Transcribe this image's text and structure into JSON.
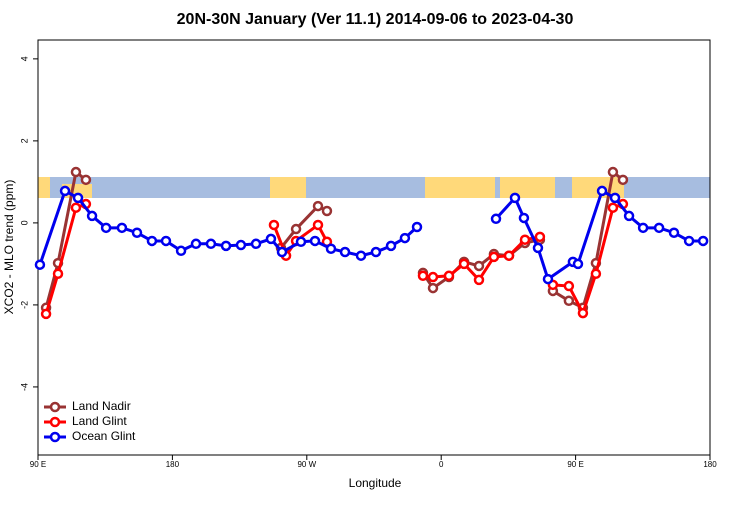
{
  "chart_data": {
    "type": "line",
    "title": "20N-30N January (Ver 11.1)   2014-09-06 to 2023-04-30",
    "xlabel": "Longitude",
    "ylabel": "XCO2 - MLO trend (ppm)",
    "xlim": [
      90,
      540
    ],
    "xticks": [
      {
        "value": 90,
        "label": "90 E"
      },
      {
        "value": 180,
        "label": "180"
      },
      {
        "value": 270,
        "label": "90 W"
      },
      {
        "value": 360,
        "label": "0"
      },
      {
        "value": 450,
        "label": "90 E"
      },
      {
        "value": 540,
        "label": "180"
      }
    ],
    "ylim": [
      -5.66,
      4.46
    ],
    "yticks": [
      4,
      2,
      0,
      -2,
      -4
    ],
    "legend": "bottom-left",
    "series": [
      {
        "name": "Land Nadir",
        "color": "#993333",
        "x": [
          95.4,
          103.4,
          115.4,
          122.1,
          null,
          252.7,
          262.8,
          277.5,
          283.5,
          null,
          347.8,
          354.5,
          365.2,
          375.3,
          385.3,
          395.3,
          405.4,
          416.1,
          426.1,
          null,
          434.8,
          445.5,
          454.9,
          463.6,
          475.0,
          481.7
        ],
        "values": [
          -2.07,
          -0.98,
          1.24,
          1.05,
          null,
          -0.61,
          -0.15,
          0.41,
          0.29,
          null,
          -1.22,
          -1.59,
          -1.32,
          -0.95,
          -1.05,
          -0.76,
          -0.8,
          -0.49,
          -0.41,
          null,
          -1.66,
          -1.9,
          -2.07,
          -0.98,
          1.24,
          1.05
        ]
      },
      {
        "name": "Land Glint",
        "color": "#ff0000",
        "x": [
          95.4,
          103.4,
          115.4,
          122.1,
          null,
          248.0,
          256.1,
          262.8,
          277.5,
          283.5,
          null,
          347.8,
          354.5,
          365.2,
          375.3,
          385.3,
          395.3,
          405.4,
          416.1,
          426.1,
          null,
          434.8,
          445.5,
          454.9,
          463.6,
          475.0,
          481.7
        ],
        "values": [
          -2.22,
          -1.24,
          0.37,
          0.46,
          null,
          -0.05,
          -0.8,
          -0.44,
          -0.05,
          -0.46,
          null,
          -1.29,
          -1.32,
          -1.29,
          -1.0,
          -1.39,
          -0.83,
          -0.8,
          -0.41,
          -0.34,
          null,
          -1.51,
          -1.54,
          -2.2,
          -1.24,
          0.37,
          0.46
        ]
      },
      {
        "name": "Ocean Glint",
        "color": "#0000ee",
        "x": [
          91.3,
          108.1,
          116.8,
          126.2,
          135.6,
          146.2,
          156.3,
          166.3,
          175.7,
          185.8,
          195.8,
          205.8,
          215.9,
          225.9,
          236.0,
          246.0,
          253.4,
          266.1,
          275.5,
          286.2,
          295.6,
          306.3,
          316.3,
          326.4,
          335.7,
          343.8,
          null,
          396.7,
          409.4,
          415.4,
          424.8,
          431.5,
          448.2,
          451.6,
          467.7,
          476.4,
          485.8,
          495.2,
          505.9,
          515.9,
          526.0,
          535.4
        ],
        "values": [
          -1.02,
          0.78,
          0.61,
          0.17,
          -0.12,
          -0.12,
          -0.24,
          -0.44,
          -0.44,
          -0.68,
          -0.51,
          -0.51,
          -0.56,
          -0.54,
          -0.51,
          -0.39,
          -0.71,
          -0.46,
          -0.44,
          -0.63,
          -0.71,
          -0.8,
          -0.71,
          -0.56,
          -0.37,
          -0.1,
          null,
          0.1,
          0.61,
          0.12,
          -0.61,
          -1.37,
          -0.95,
          -1.0,
          0.78,
          0.61,
          0.17,
          -0.12,
          -0.12,
          -0.24,
          -0.44,
          -0.44
        ]
      }
    ]
  }
}
